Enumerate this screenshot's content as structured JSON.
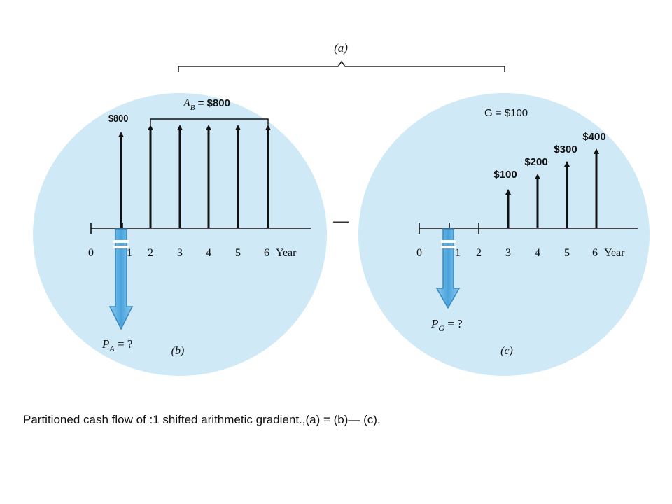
{
  "colors": {
    "circle_fill": "#cfe9f6",
    "arrow": "#111111",
    "down_arrow_fill": "#5aaee2",
    "down_arrow_stroke": "#3a88bd",
    "text": "#111111"
  },
  "top_label": "(a)",
  "minus_sign": "—",
  "panel_b": {
    "label": "(b)",
    "first_amount": "$800",
    "series_label": "A",
    "series_subscript": "B",
    "series_value": " = $800",
    "ticks": [
      "0",
      "1",
      "2",
      "3",
      "4",
      "5",
      "6"
    ],
    "axis_word": "Year",
    "present_symbol": "P",
    "present_subscript": "A",
    "present_value": " = ?"
  },
  "panel_c": {
    "label": "(c)",
    "gradient_label": "G = $100",
    "amounts": [
      "$100",
      "$200",
      "$300",
      "$400"
    ],
    "ticks": [
      "0",
      "1",
      "2",
      "3",
      "4",
      "5",
      "6"
    ],
    "axis_word": "Year",
    "present_symbol": "P",
    "present_subscript": "G",
    "present_value": " = ?"
  },
  "caption": "Partitioned cash ﬂow of :1 shifted arithmetic gradient.,(a) = (b)— (c)."
}
